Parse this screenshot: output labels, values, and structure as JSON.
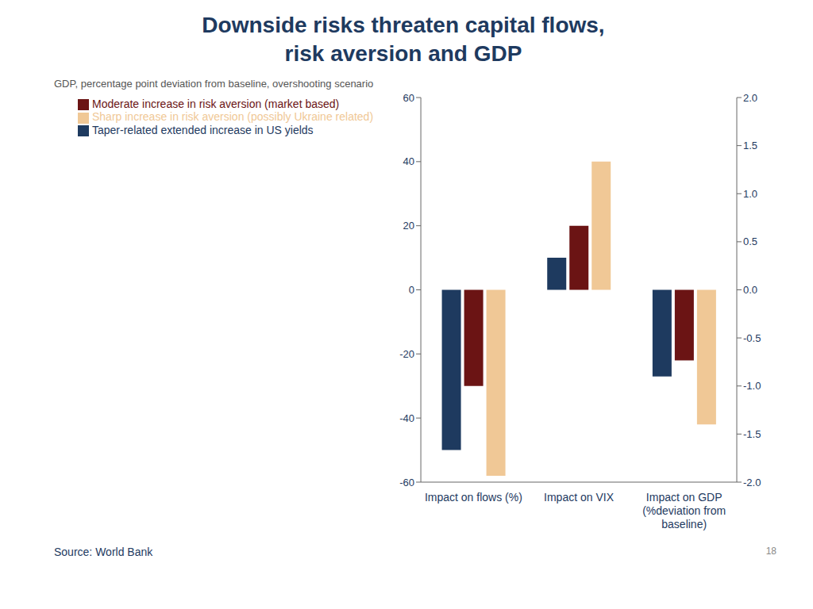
{
  "chart_data": {
    "type": "bar",
    "title": "Downside risks threaten capital flows,\nrisk aversion and GDP",
    "subtitle": "GDP, percentage point deviation from baseline, overshooting scenario",
    "categories": [
      "Impact on flows (%)",
      "Impact on VIX",
      "Impact on GDP\n(%deviation from\nbaseline)"
    ],
    "series": [
      {
        "name": "Taper-related extended increase in US yields",
        "color": "#1e3a5f",
        "values": [
          -50,
          10,
          -27
        ]
      },
      {
        "name": "Moderate increase in risk aversion (market based)",
        "color": "#6b1414",
        "values": [
          -30,
          20,
          -22
        ]
      },
      {
        "name": "Sharp increase in risk aversion (possibly Ukraine related)",
        "color": "#f0c896",
        "values": [
          -58,
          40,
          -42
        ]
      }
    ],
    "ylim": [
      -60,
      60
    ],
    "yticks": [
      -60,
      -40,
      -20,
      0,
      20,
      40,
      60
    ],
    "y2lim": [
      -2.0,
      2.0
    ],
    "y2ticks": [
      {
        "value": -2.0,
        "label": "-2.0"
      },
      -1.5,
      {
        "value": -1.0,
        "label": "-1.0"
      },
      -0.5,
      {
        "value": 0.0,
        "label": "0.0"
      },
      0.5,
      {
        "value": 1.0,
        "label": "1.0"
      },
      1.5,
      {
        "value": 2.0,
        "label": "2.0"
      }
    ],
    "grid": false,
    "legend": "top-left",
    "annotations": [
      "Source: World Bank",
      "18"
    ]
  }
}
